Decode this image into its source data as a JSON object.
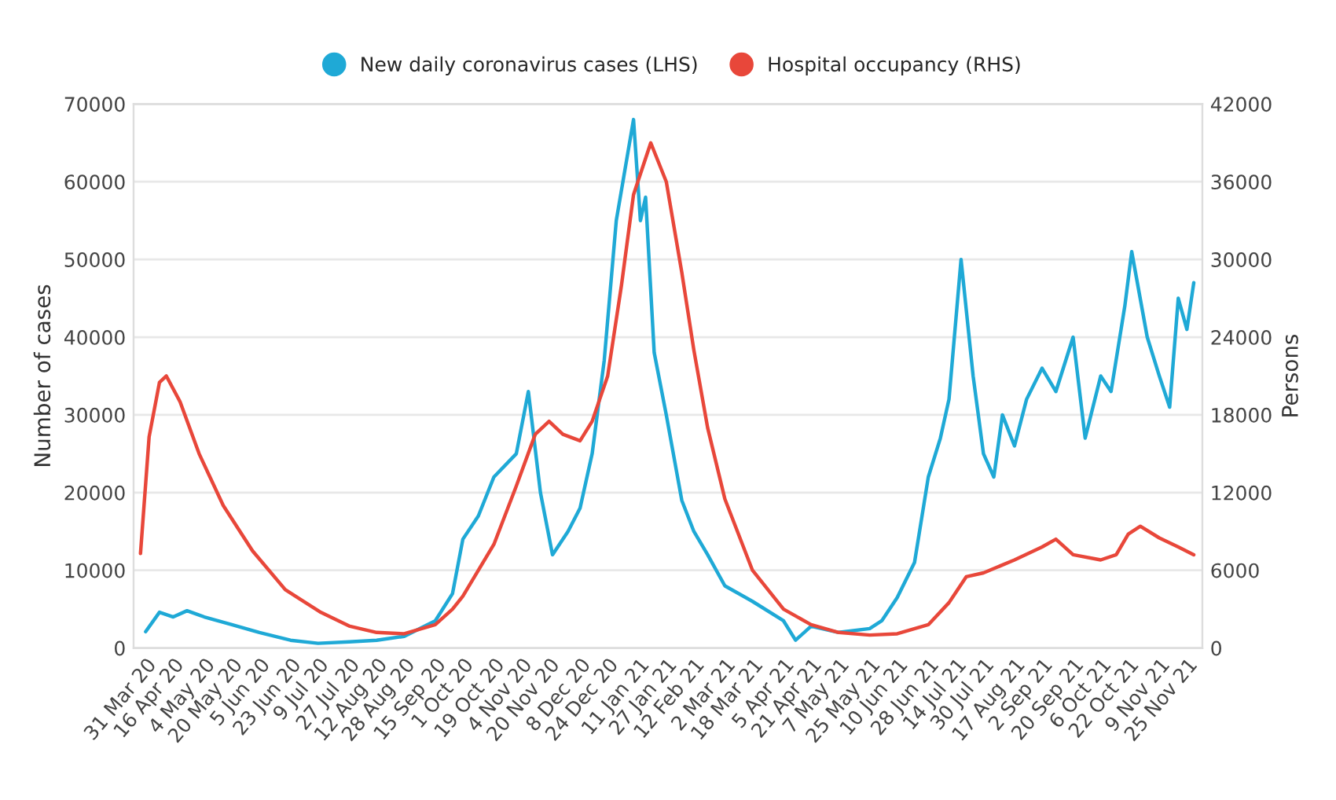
{
  "chart_data": {
    "type": "line",
    "xlabel": null,
    "ylabel": "Number of cases",
    "y2label": "Persons",
    "legend": "top",
    "grid": "y",
    "xlim": [
      "2020-03-24",
      "2021-12-04"
    ],
    "xticks": [
      {
        "value": "2020-03-31",
        "label": "31 Mar 20"
      },
      {
        "value": "2020-04-16",
        "label": "16 Apr 20"
      },
      {
        "value": "2020-05-04",
        "label": "4 May 20"
      },
      {
        "value": "2020-05-20",
        "label": "20 May 20"
      },
      {
        "value": "2020-06-05",
        "label": "5 Jun 20"
      },
      {
        "value": "2020-06-23",
        "label": "23 Jun 20"
      },
      {
        "value": "2020-07-09",
        "label": "9 Jul 20"
      },
      {
        "value": "2020-07-27",
        "label": "27 Jul 20"
      },
      {
        "value": "2020-08-12",
        "label": "12 Aug 20"
      },
      {
        "value": "2020-08-28",
        "label": "28 Aug 20"
      },
      {
        "value": "2020-09-15",
        "label": "15 Sep 20"
      },
      {
        "value": "2020-10-01",
        "label": "1 Oct 20"
      },
      {
        "value": "2020-10-19",
        "label": "19 Oct 20"
      },
      {
        "value": "2020-11-04",
        "label": "4 Nov 20"
      },
      {
        "value": "2020-11-20",
        "label": "20 Nov 20"
      },
      {
        "value": "2020-12-08",
        "label": "8 Dec 20"
      },
      {
        "value": "2020-12-24",
        "label": "24 Dec 20"
      },
      {
        "value": "2021-01-11",
        "label": "11 Jan 21"
      },
      {
        "value": "2021-01-27",
        "label": "27 Jan 21"
      },
      {
        "value": "2021-02-12",
        "label": "12 Feb 21"
      },
      {
        "value": "2021-03-02",
        "label": "2 Mar 21"
      },
      {
        "value": "2021-03-18",
        "label": "18 Mar 21"
      },
      {
        "value": "2021-04-05",
        "label": "5 Apr 21"
      },
      {
        "value": "2021-04-21",
        "label": "21 Apr 21"
      },
      {
        "value": "2021-05-07",
        "label": "7 May 21"
      },
      {
        "value": "2021-05-25",
        "label": "25 May 21"
      },
      {
        "value": "2021-06-10",
        "label": "10 Jun 21"
      },
      {
        "value": "2021-06-28",
        "label": "28 Jun 21"
      },
      {
        "value": "2021-07-14",
        "label": "14 Jul 21"
      },
      {
        "value": "2021-07-30",
        "label": "30 Jul 21"
      },
      {
        "value": "2021-08-17",
        "label": "17 Aug 21"
      },
      {
        "value": "2021-09-02",
        "label": "2 Sep 21"
      },
      {
        "value": "2021-09-20",
        "label": "20 Sep 21"
      },
      {
        "value": "2021-10-06",
        "label": "6 Oct 21"
      },
      {
        "value": "2021-10-22",
        "label": "22 Oct 21"
      },
      {
        "value": "2021-11-09",
        "label": "9 Nov 21"
      },
      {
        "value": "2021-11-25",
        "label": "25 Nov 21"
      }
    ],
    "ylim": [
      0,
      70000
    ],
    "yticks": [
      0,
      10000,
      20000,
      30000,
      40000,
      50000,
      60000,
      70000
    ],
    "y2lim": [
      0,
      42000
    ],
    "y2ticks": [
      0,
      6000,
      12000,
      18000,
      24000,
      30000,
      36000,
      42000
    ],
    "series": [
      {
        "name": "New daily coronavirus cases (LHS)",
        "color": "#1fa9d6",
        "x": [
          "2020-03-31",
          "2020-04-08",
          "2020-04-16",
          "2020-04-24",
          "2020-05-04",
          "2020-05-20",
          "2020-06-05",
          "2020-06-23",
          "2020-07-09",
          "2020-07-27",
          "2020-08-12",
          "2020-08-28",
          "2020-09-15",
          "2020-09-25",
          "2020-10-01",
          "2020-10-10",
          "2020-10-19",
          "2020-11-01",
          "2020-11-08",
          "2020-11-15",
          "2020-11-22",
          "2020-12-01",
          "2020-12-08",
          "2020-12-15",
          "2020-12-22",
          "2020-12-29",
          "2021-01-08",
          "2021-01-12",
          "2021-01-15",
          "2021-01-20",
          "2021-01-27",
          "2021-02-05",
          "2021-02-12",
          "2021-02-20",
          "2021-03-02",
          "2021-03-18",
          "2021-04-05",
          "2021-04-12",
          "2021-04-21",
          "2021-05-07",
          "2021-05-25",
          "2021-06-01",
          "2021-06-10",
          "2021-06-20",
          "2021-06-28",
          "2021-07-05",
          "2021-07-10",
          "2021-07-17",
          "2021-07-24",
          "2021-07-30",
          "2021-08-05",
          "2021-08-10",
          "2021-08-17",
          "2021-08-24",
          "2021-09-02",
          "2021-09-10",
          "2021-09-20",
          "2021-09-27",
          "2021-10-06",
          "2021-10-12",
          "2021-10-20",
          "2021-10-24",
          "2021-11-02",
          "2021-11-09",
          "2021-11-15",
          "2021-11-20",
          "2021-11-25",
          "2021-11-29"
        ],
        "values": [
          2100,
          4600,
          4000,
          4800,
          4000,
          3000,
          2000,
          1000,
          600,
          800,
          1000,
          1500,
          3500,
          7000,
          14000,
          17000,
          22000,
          25000,
          33000,
          20000,
          12000,
          15000,
          18000,
          25000,
          37000,
          55000,
          68000,
          55000,
          58000,
          38000,
          30000,
          19000,
          15000,
          12000,
          8000,
          6000,
          3500,
          1000,
          2800,
          2000,
          2500,
          3500,
          6500,
          11000,
          22000,
          27000,
          32000,
          50000,
          35000,
          25000,
          22000,
          30000,
          26000,
          32000,
          36000,
          33000,
          40000,
          27000,
          35000,
          33000,
          44000,
          51000,
          40000,
          35000,
          31000,
          45000,
          41000,
          47000
        ]
      },
      {
        "name": "Hospital occupancy (RHS)",
        "color": "#e8473a",
        "axis": "y2",
        "x": [
          "2020-03-28",
          "2020-04-02",
          "2020-04-08",
          "2020-04-12",
          "2020-04-20",
          "2020-05-01",
          "2020-05-15",
          "2020-06-01",
          "2020-06-20",
          "2020-07-10",
          "2020-07-27",
          "2020-08-12",
          "2020-08-28",
          "2020-09-15",
          "2020-09-25",
          "2020-10-01",
          "2020-10-19",
          "2020-11-01",
          "2020-11-12",
          "2020-11-20",
          "2020-11-28",
          "2020-12-08",
          "2020-12-15",
          "2020-12-24",
          "2021-01-01",
          "2021-01-08",
          "2021-01-18",
          "2021-01-27",
          "2021-02-05",
          "2021-02-12",
          "2021-02-20",
          "2021-03-02",
          "2021-03-18",
          "2021-04-05",
          "2021-04-21",
          "2021-05-07",
          "2021-05-25",
          "2021-06-10",
          "2021-06-28",
          "2021-07-10",
          "2021-07-20",
          "2021-07-30",
          "2021-08-17",
          "2021-09-02",
          "2021-09-10",
          "2021-09-20",
          "2021-10-06",
          "2021-10-15",
          "2021-10-22",
          "2021-10-29",
          "2021-11-09",
          "2021-11-20",
          "2021-11-29"
        ],
        "values": [
          7300,
          16300,
          20500,
          21000,
          19000,
          15000,
          11000,
          7500,
          4500,
          2800,
          1700,
          1200,
          1100,
          1800,
          3000,
          4000,
          8000,
          12500,
          16500,
          17500,
          16500,
          16000,
          17500,
          21000,
          28000,
          35000,
          39000,
          36000,
          29000,
          23000,
          17000,
          11500,
          6000,
          3000,
          1800,
          1200,
          1000,
          1100,
          1800,
          3500,
          5500,
          5800,
          6800,
          7800,
          8400,
          7200,
          6800,
          7200,
          8800,
          9400,
          8500,
          7800,
          7200
        ]
      }
    ]
  }
}
